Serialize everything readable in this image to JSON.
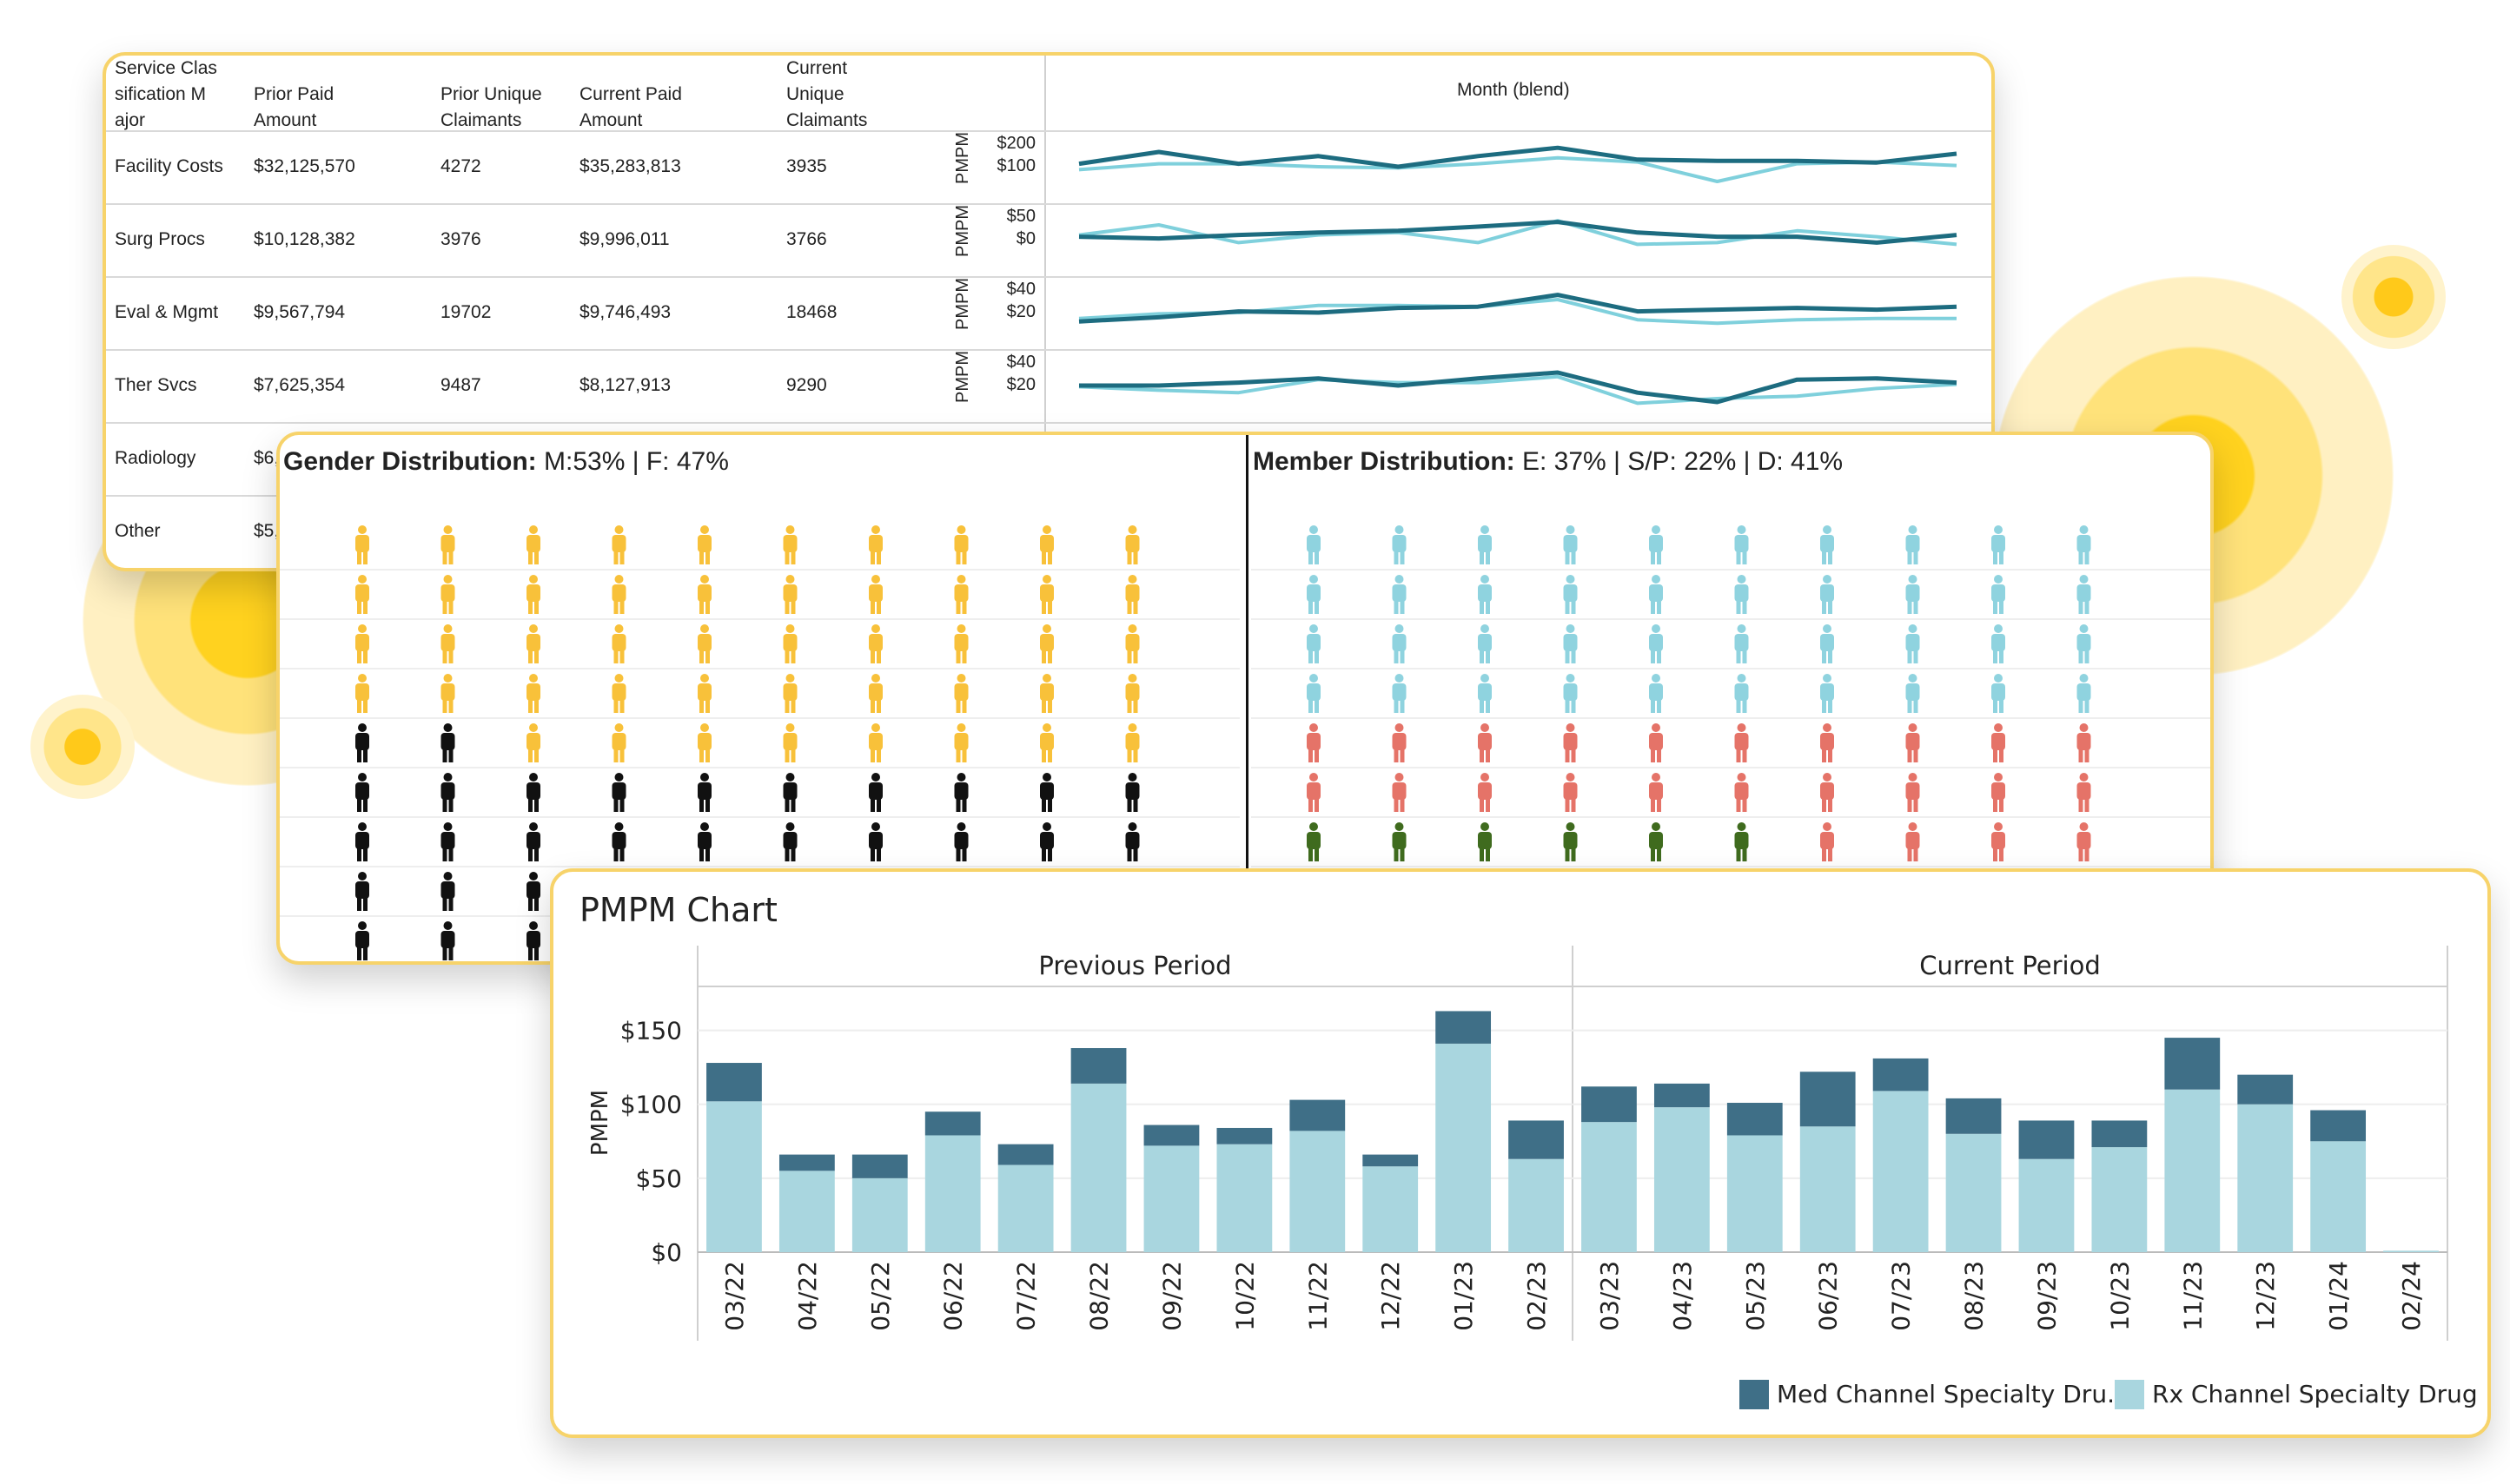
{
  "table": {
    "headers": [
      "Service Clas sification M ajor",
      "Prior Paid Amount",
      "Prior Unique Claimants",
      "Current Paid Amount",
      "Current Unique Claimants"
    ],
    "header_lines": [
      [
        "Service Clas",
        "sification M",
        "ajor"
      ],
      [
        "Prior Paid",
        "Amount"
      ],
      [
        "Prior Unique",
        "Claimants"
      ],
      [
        "Current Paid",
        "Amount"
      ],
      [
        "Current",
        "Unique",
        "Claimants"
      ]
    ],
    "month_label": "Month (blend)",
    "axis_label": "PMPM",
    "rows": [
      {
        "name": "Facility Costs",
        "prior_paid": "$32,125,570",
        "prior_unique": "4272",
        "current_paid": "$35,283,813",
        "current_unique": "3935",
        "ticks": [
          "$200",
          "$100"
        ]
      },
      {
        "name": "Surg Procs",
        "prior_paid": "$10,128,382",
        "prior_unique": "3976",
        "current_paid": "$9,996,011",
        "current_unique": "3766",
        "ticks": [
          "$50",
          "$0"
        ]
      },
      {
        "name": "Eval & Mgmt",
        "prior_paid": "$9,567,794",
        "prior_unique": "19702",
        "current_paid": "$9,746,493",
        "current_unique": "18468",
        "ticks": [
          "$40",
          "$20"
        ]
      },
      {
        "name": "Ther Svcs",
        "prior_paid": "$7,625,354",
        "prior_unique": "9487",
        "current_paid": "$8,127,913",
        "current_unique": "9290",
        "ticks": [
          "$40",
          "$20"
        ]
      },
      {
        "name": "Radiology",
        "prior_paid": "$6,",
        "prior_unique": "",
        "current_paid": "",
        "current_unique": "",
        "ticks": []
      },
      {
        "name": "Other",
        "prior_paid": "$5,",
        "prior_unique": "",
        "current_paid": "",
        "current_unique": "",
        "ticks": []
      }
    ],
    "sparklines": [
      {
        "dark": [
          0.55,
          0.75,
          0.55,
          0.68,
          0.5,
          0.68,
          0.82,
          0.62,
          0.6,
          0.6,
          0.57,
          0.72
        ],
        "light": [
          0.45,
          0.55,
          0.55,
          0.5,
          0.48,
          0.55,
          0.65,
          0.58,
          0.25,
          0.55,
          0.58,
          0.52
        ]
      },
      {
        "dark": [
          0.55,
          0.52,
          0.58,
          0.62,
          0.65,
          0.72,
          0.8,
          0.62,
          0.55,
          0.55,
          0.45,
          0.58
        ],
        "light": [
          0.58,
          0.75,
          0.45,
          0.58,
          0.62,
          0.45,
          0.82,
          0.42,
          0.45,
          0.65,
          0.55,
          0.42
        ]
      },
      {
        "dark": [
          0.35,
          0.42,
          0.52,
          0.5,
          0.58,
          0.6,
          0.8,
          0.52,
          0.55,
          0.58,
          0.55,
          0.6
        ],
        "light": [
          0.4,
          0.48,
          0.5,
          0.62,
          0.62,
          0.6,
          0.72,
          0.38,
          0.32,
          0.38,
          0.4,
          0.4
        ]
      },
      {
        "dark": [
          0.5,
          0.5,
          0.55,
          0.62,
          0.5,
          0.62,
          0.72,
          0.38,
          0.22,
          0.6,
          0.62,
          0.55
        ],
        "light": [
          0.48,
          0.42,
          0.38,
          0.6,
          0.55,
          0.55,
          0.65,
          0.2,
          0.28,
          0.32,
          0.45,
          0.52
        ]
      }
    ]
  },
  "distribution": {
    "gender_label": "Gender Distribution:",
    "gender_value": " M:53%  | F: 47%",
    "member_label": "Member Distribution:",
    "member_value": " E: 37% | S/P: 22% | D: 41%",
    "colors": {
      "female": "#f8c13a",
      "male": "#111111",
      "e": "#8fd3df",
      "sp": "#e57368",
      "d": "#3f6b1e"
    }
  },
  "pmpm": {
    "title": "PMPM Chart",
    "ylabel": "PMPM",
    "yticks": [
      "$150",
      "$100",
      "$50",
      "$0"
    ],
    "panel_previous": "Previous Period",
    "panel_current": "Current Period",
    "legend_med": "Med Channel Specialty Dru..",
    "legend_rx": "Rx Channel Specialty Drug",
    "color_med": "#3f6f87",
    "color_rx": "#a9d6df"
  },
  "chart_data": {
    "type": "bar",
    "stacked": true,
    "title": "PMPM Chart",
    "ylabel": "PMPM",
    "ylim": [
      0,
      175
    ],
    "panels": [
      "Previous Period",
      "Current Period"
    ],
    "categories": [
      "03/22",
      "04/22",
      "05/22",
      "06/22",
      "07/22",
      "08/22",
      "09/22",
      "10/22",
      "11/22",
      "12/22",
      "01/23",
      "02/23",
      "03/23",
      "04/23",
      "05/23",
      "06/23",
      "07/23",
      "08/23",
      "09/23",
      "10/23",
      "11/23",
      "12/23",
      "01/24",
      "02/24"
    ],
    "series": [
      {
        "name": "Rx Channel Specialty Drug",
        "values": [
          102,
          55,
          50,
          79,
          59,
          114,
          72,
          73,
          82,
          58,
          141,
          63,
          88,
          98,
          79,
          85,
          109,
          80,
          63,
          71,
          110,
          100,
          75,
          1
        ]
      },
      {
        "name": "Med Channel Specialty Dru..",
        "values": [
          26,
          11,
          16,
          16,
          14,
          24,
          14,
          11,
          21,
          8,
          22,
          26,
          24,
          16,
          22,
          37,
          22,
          24,
          26,
          18,
          35,
          20,
          21,
          0
        ]
      }
    ]
  }
}
